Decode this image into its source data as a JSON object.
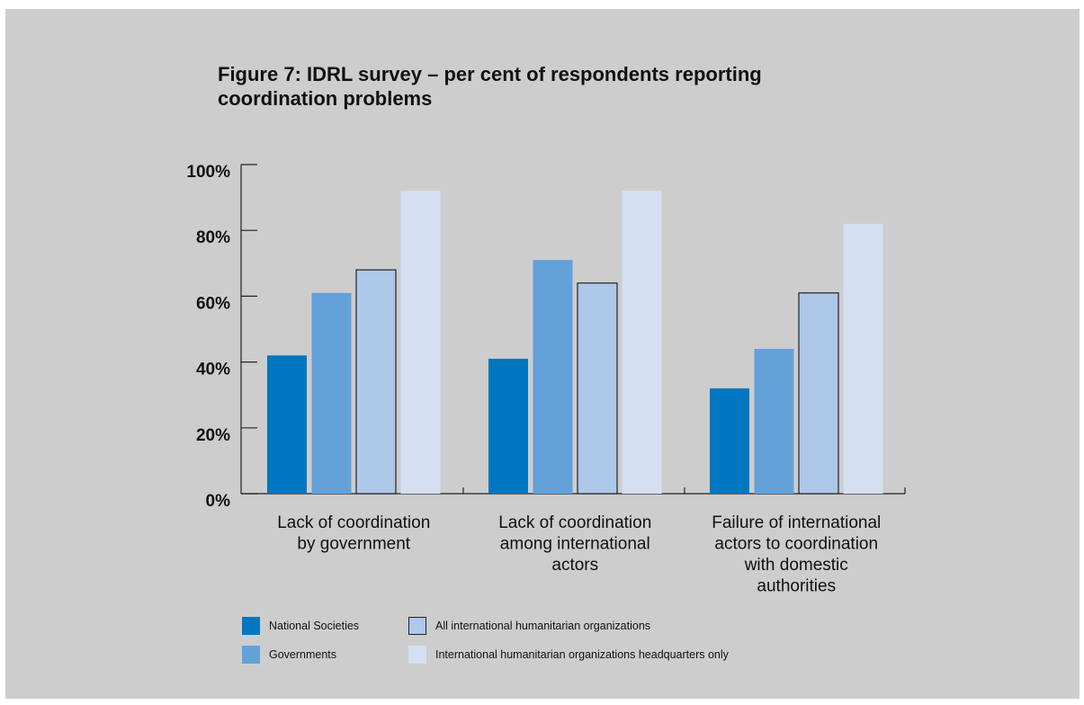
{
  "title": "Figure 7: IDRL survey – per cent of respondents reporting coordination problems",
  "chart_data": {
    "type": "bar",
    "title": "Figure 7: IDRL survey – per cent of respondents reporting coordination problems",
    "xlabel": "",
    "ylabel": "",
    "ylim": [
      0,
      100
    ],
    "yticks": [
      "0%",
      "20%",
      "40%",
      "60%",
      "80%",
      "100%"
    ],
    "categories": [
      [
        "Lack of coordination",
        "by government"
      ],
      [
        "Lack of coordination",
        "among international",
        "actors"
      ],
      [
        "Failure of international",
        "actors to coordination",
        "with domestic",
        "authorities"
      ]
    ],
    "series": [
      {
        "name": "National Societies",
        "color": "#0077c0",
        "outline": false,
        "values": [
          42,
          41,
          32
        ]
      },
      {
        "name": "Governments",
        "color": "#64a1d8",
        "outline": false,
        "values": [
          61,
          71,
          44
        ]
      },
      {
        "name": "All international humanitarian organizations",
        "color": "#aec8ea",
        "outline": true,
        "values": [
          68,
          64,
          61
        ]
      },
      {
        "name": "International humanitarian organizations headquarters only",
        "color": "#d4e0f2",
        "outline": false,
        "values": [
          92,
          92,
          82
        ]
      }
    ],
    "grid": false,
    "legend_position": "bottom"
  }
}
